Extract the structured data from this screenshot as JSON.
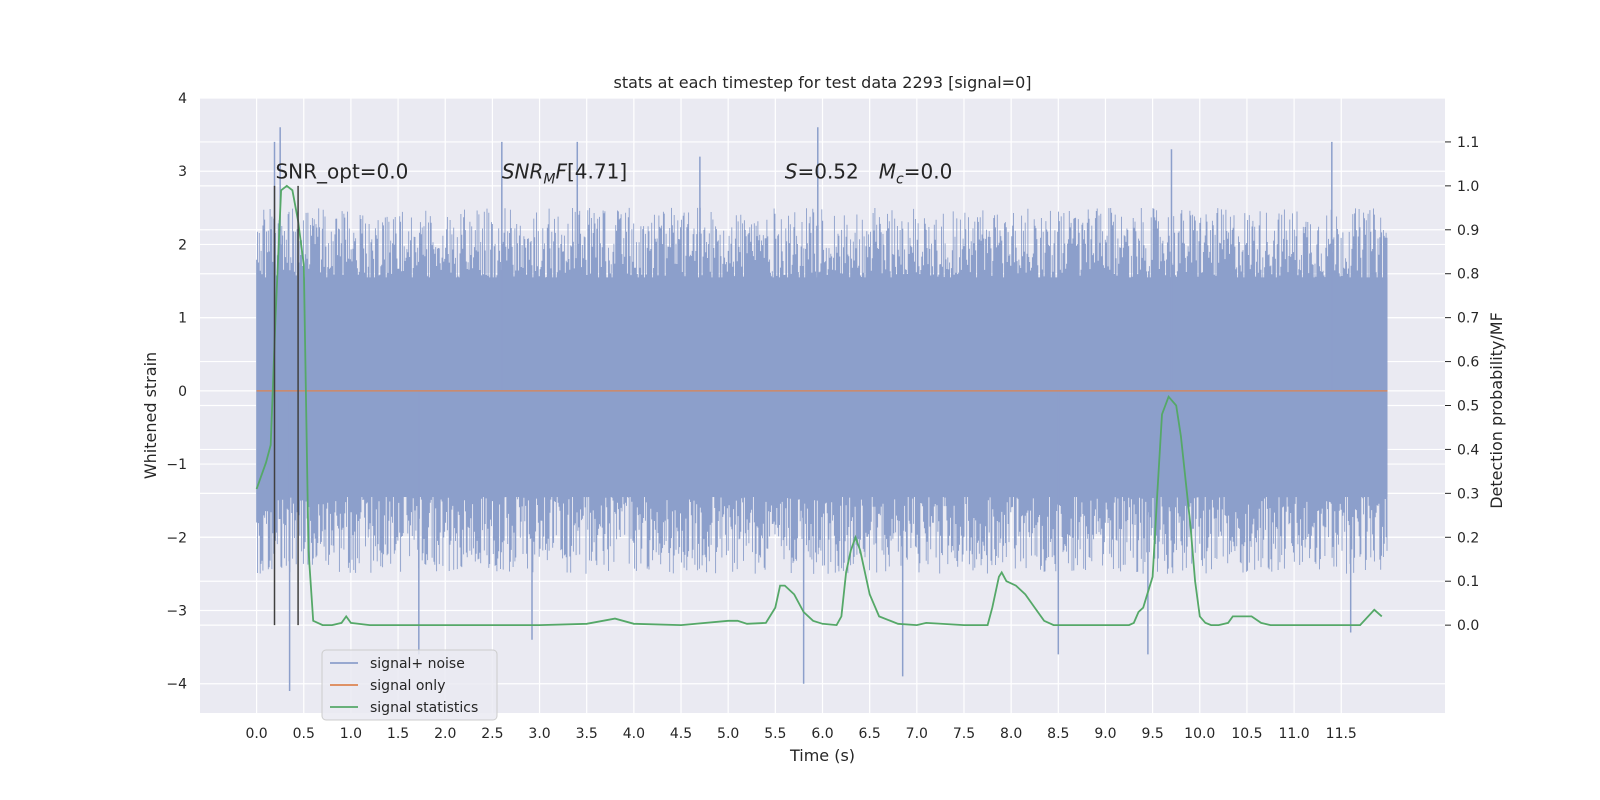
{
  "chart_data": {
    "type": "line",
    "title": "stats at each timestep for test data 2293 [signal=0]",
    "xlabel": "Time (s)",
    "ylabel": "Whitened strain",
    "y2label": "Detection probability/MF",
    "xlim": [
      -0.6,
      12.6
    ],
    "ylim": [
      -4.4,
      4.0
    ],
    "y2lim": [
      -0.2,
      1.2
    ],
    "xticks": [
      0.0,
      0.5,
      1.0,
      1.5,
      2.0,
      2.5,
      3.0,
      3.5,
      4.0,
      4.5,
      5.0,
      5.5,
      6.0,
      6.5,
      7.0,
      7.5,
      8.0,
      8.5,
      9.0,
      9.5,
      10.0,
      10.5,
      11.0,
      11.5
    ],
    "xtick_labels": [
      "0.0",
      "0.5",
      "1.0",
      "1.5",
      "2.0",
      "2.5",
      "3.0",
      "3.5",
      "4.0",
      "4.5",
      "5.0",
      "5.5",
      "6.0",
      "6.5",
      "7.0",
      "7.5",
      "8.0",
      "8.5",
      "9.0",
      "9.5",
      "10.0",
      "10.5",
      "11.0",
      "11.5"
    ],
    "yticks": [
      -4,
      -3,
      -2,
      -1,
      0,
      1,
      2,
      3,
      4
    ],
    "ytick_labels": [
      "−4",
      "−3",
      "−2",
      "−1",
      "0",
      "1",
      "2",
      "3",
      "4"
    ],
    "y2ticks": [
      0.0,
      0.1,
      0.2,
      0.3,
      0.4,
      0.5,
      0.6,
      0.7,
      0.8,
      0.9,
      1.0,
      1.1
    ],
    "y2tick_labels": [
      "0.0",
      "0.1",
      "0.2",
      "0.3",
      "0.4",
      "0.5",
      "0.6",
      "0.7",
      "0.8",
      "0.9",
      "1.0",
      "1.1"
    ],
    "grid": true,
    "legend_position": "lower-left",
    "legend": [
      "signal+ noise",
      "signal only",
      "signal statistics"
    ],
    "annotations": [
      {
        "text": "SNR_opt=0.0",
        "x": 0.2,
        "y": 2.9
      },
      {
        "text": "SNR_MF=[4.71]",
        "x": 2.6,
        "y": 2.9
      },
      {
        "text": "S=0.52   M_c=0.0",
        "x": 5.6,
        "y": 2.9
      }
    ],
    "vlines": [
      {
        "x": 0.19,
        "y2": [
          0.0,
          1.0
        ]
      },
      {
        "x": 0.44,
        "y2": [
          0.0,
          1.0
        ]
      }
    ],
    "series": [
      {
        "name": "signal+ noise",
        "color": "#8c9fcb",
        "axis": "left",
        "type": "noise_band",
        "x_range": [
          0.0,
          11.99
        ],
        "core_range": [
          -1.45,
          1.55
        ],
        "envelope_range": [
          -2.5,
          2.5
        ],
        "spikes": [
          {
            "x": 0.19,
            "y": 3.4
          },
          {
            "x": 0.25,
            "y": 3.6
          },
          {
            "x": 0.35,
            "y": -4.1
          },
          {
            "x": 1.72,
            "y": -3.6
          },
          {
            "x": 2.6,
            "y": 3.4
          },
          {
            "x": 2.92,
            "y": -3.4
          },
          {
            "x": 3.4,
            "y": 3.4
          },
          {
            "x": 4.7,
            "y": 3.2
          },
          {
            "x": 5.8,
            "y": -4.0
          },
          {
            "x": 5.95,
            "y": 3.6
          },
          {
            "x": 6.85,
            "y": -3.9
          },
          {
            "x": 8.5,
            "y": -3.6
          },
          {
            "x": 9.45,
            "y": -3.6
          },
          {
            "x": 9.7,
            "y": 3.3
          },
          {
            "x": 11.4,
            "y": 3.4
          },
          {
            "x": 11.6,
            "y": -3.3
          }
        ]
      },
      {
        "name": "signal only",
        "color": "#dd8452",
        "axis": "left",
        "x": [
          0.0,
          11.99
        ],
        "y": [
          0.0,
          0.0
        ]
      },
      {
        "name": "signal statistics",
        "color": "#55a868",
        "axis": "right",
        "x": [
          0.0,
          0.1,
          0.15,
          0.2,
          0.26,
          0.32,
          0.38,
          0.44,
          0.5,
          0.55,
          0.6,
          0.7,
          0.8,
          0.9,
          0.95,
          1.0,
          1.2,
          2.0,
          3.0,
          3.5,
          3.8,
          4.0,
          4.5,
          5.0,
          5.1,
          5.2,
          5.4,
          5.5,
          5.55,
          5.6,
          5.7,
          5.8,
          5.9,
          6.0,
          6.15,
          6.2,
          6.25,
          6.3,
          6.35,
          6.4,
          6.5,
          6.6,
          6.8,
          7.0,
          7.1,
          7.5,
          7.75,
          7.8,
          7.87,
          7.9,
          7.95,
          8.05,
          8.15,
          8.25,
          8.35,
          8.45,
          8.6,
          9.0,
          9.25,
          9.3,
          9.35,
          9.4,
          9.5,
          9.55,
          9.6,
          9.67,
          9.75,
          9.8,
          9.9,
          9.95,
          10.0,
          10.06,
          10.12,
          10.2,
          10.3,
          10.35,
          10.45,
          10.55,
          10.65,
          10.75,
          11.0,
          11.5,
          11.7,
          11.85,
          11.93
        ],
        "y": [
          0.31,
          0.37,
          0.41,
          0.7,
          0.99,
          1.0,
          0.99,
          0.92,
          0.82,
          0.17,
          0.01,
          0.0,
          0.0,
          0.005,
          0.02,
          0.005,
          0.0,
          0.0,
          0.0,
          0.003,
          0.015,
          0.003,
          0.0,
          0.01,
          0.01,
          0.003,
          0.005,
          0.04,
          0.09,
          0.09,
          0.07,
          0.03,
          0.01,
          0.003,
          0.0,
          0.02,
          0.12,
          0.17,
          0.2,
          0.17,
          0.07,
          0.02,
          0.003,
          0.0,
          0.005,
          0.0,
          0.0,
          0.04,
          0.11,
          0.12,
          0.1,
          0.09,
          0.07,
          0.04,
          0.01,
          0.0,
          0.0,
          0.0,
          0.0,
          0.005,
          0.03,
          0.04,
          0.11,
          0.3,
          0.48,
          0.52,
          0.5,
          0.43,
          0.23,
          0.1,
          0.02,
          0.005,
          0.0,
          0.0,
          0.005,
          0.02,
          0.02,
          0.02,
          0.005,
          0.0,
          0.0,
          0.0,
          0.0,
          0.035,
          0.02
        ]
      }
    ]
  }
}
